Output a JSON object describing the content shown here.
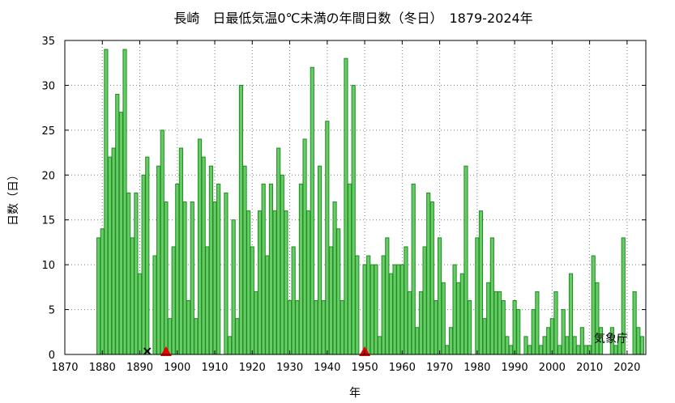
{
  "chart_data": {
    "type": "bar",
    "title": "長崎　日最低気温0℃未満の年間日数（冬日）　1879-2024年",
    "xlabel": "年",
    "ylabel": "日数（日）",
    "credit": "気象庁",
    "xlim": [
      1870,
      2025
    ],
    "ylim": [
      0,
      35
    ],
    "x_ticks": [
      1870,
      1880,
      1890,
      1900,
      1910,
      1920,
      1930,
      1940,
      1950,
      1960,
      1970,
      1980,
      1990,
      2000,
      2010,
      2020
    ],
    "y_ticks": [
      0,
      5,
      10,
      15,
      20,
      25,
      30,
      35
    ],
    "grid": true,
    "colors": {
      "bar_fill": "#66cc66",
      "bar_stroke": "#228b22",
      "marker_triangle": "#ee0000",
      "marker_cross": "#000000"
    },
    "x": [
      1879,
      1880,
      1881,
      1882,
      1883,
      1884,
      1885,
      1886,
      1887,
      1888,
      1889,
      1890,
      1891,
      1892,
      1893,
      1894,
      1895,
      1896,
      1897,
      1898,
      1899,
      1900,
      1901,
      1902,
      1903,
      1904,
      1905,
      1906,
      1907,
      1908,
      1909,
      1910,
      1911,
      1912,
      1913,
      1914,
      1915,
      1916,
      1917,
      1918,
      1919,
      1920,
      1921,
      1922,
      1923,
      1924,
      1925,
      1926,
      1927,
      1928,
      1929,
      1930,
      1931,
      1932,
      1933,
      1934,
      1935,
      1936,
      1937,
      1938,
      1939,
      1940,
      1941,
      1942,
      1943,
      1944,
      1945,
      1946,
      1947,
      1948,
      1949,
      1950,
      1951,
      1952,
      1953,
      1954,
      1955,
      1956,
      1957,
      1958,
      1959,
      1960,
      1961,
      1962,
      1963,
      1964,
      1965,
      1966,
      1967,
      1968,
      1969,
      1970,
      1971,
      1972,
      1973,
      1974,
      1975,
      1976,
      1977,
      1978,
      1979,
      1980,
      1981,
      1982,
      1983,
      1984,
      1985,
      1986,
      1987,
      1988,
      1989,
      1990,
      1991,
      1992,
      1993,
      1994,
      1995,
      1996,
      1997,
      1998,
      1999,
      2000,
      2001,
      2002,
      2003,
      2004,
      2005,
      2006,
      2007,
      2008,
      2009,
      2010,
      2011,
      2012,
      2013,
      2014,
      2015,
      2016,
      2017,
      2018,
      2019,
      2020,
      2021,
      2022,
      2023,
      2024
    ],
    "values": [
      13,
      14,
      34,
      22,
      23,
      29,
      27,
      34,
      18,
      13,
      18,
      9,
      20,
      22,
      0,
      11,
      21,
      25,
      17,
      4,
      12,
      19,
      23,
      17,
      6,
      17,
      4,
      24,
      22,
      12,
      21,
      17,
      19,
      0,
      18,
      2,
      15,
      4,
      30,
      21,
      16,
      12,
      7,
      16,
      19,
      11,
      19,
      16,
      23,
      20,
      16,
      6,
      12,
      6,
      19,
      24,
      16,
      32,
      6,
      21,
      6,
      26,
      12,
      17,
      14,
      6,
      33,
      19,
      30,
      11,
      0,
      10,
      11,
      10,
      10,
      2,
      11,
      13,
      9,
      10,
      10,
      10,
      12,
      7,
      19,
      3,
      7,
      12,
      18,
      17,
      6,
      13,
      8,
      1,
      3,
      10,
      8,
      9,
      21,
      6,
      0,
      13,
      16,
      4,
      8,
      13,
      7,
      7,
      6,
      2,
      1,
      6,
      5,
      0,
      2,
      1,
      5,
      7,
      1,
      2,
      3,
      4,
      7,
      1,
      5,
      2,
      9,
      2,
      1,
      3,
      1,
      1,
      11,
      8,
      3,
      0,
      0,
      3,
      1,
      2,
      13,
      0,
      0,
      7,
      3,
      2
    ],
    "markers": [
      {
        "year": 1892,
        "shape": "cross",
        "color": "#000000"
      },
      {
        "year": 1897,
        "shape": "triangle",
        "color": "#ee0000"
      },
      {
        "year": 1950,
        "shape": "triangle",
        "color": "#ee0000"
      }
    ]
  }
}
